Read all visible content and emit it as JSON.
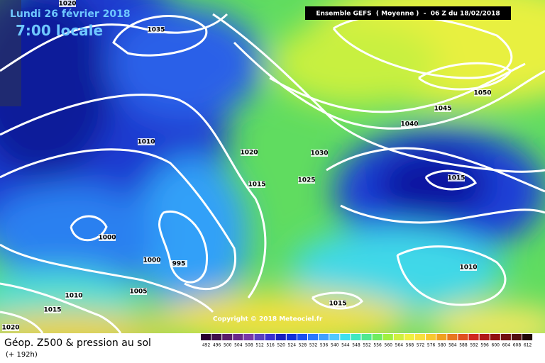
{
  "header": {
    "date": "Lundi 26 février 2018",
    "time": "7:00 locale",
    "model": "Ensemble GEFS  ( Moyenne )  -  06 Z du 18/02/2018"
  },
  "isobars": [
    "1020",
    "1035",
    "1010",
    "1000",
    "1000",
    "995",
    "1005",
    "1010",
    "1015",
    "1020",
    "1020",
    "1015",
    "1025",
    "1030",
    "1040",
    "1045",
    "1050",
    "1015",
    "1010",
    "1015"
  ],
  "copyright": "Copyright © 2018 Meteociel.fr",
  "footer": {
    "title": "Géop. Z500 & pression au sol",
    "lead": "(+ 192h)"
  },
  "legend": {
    "levels": [
      492,
      496,
      500,
      504,
      508,
      512,
      516,
      520,
      524,
      528,
      532,
      536,
      540,
      544,
      548,
      552,
      556,
      560,
      564,
      568,
      572,
      576,
      580,
      584,
      588,
      592,
      596,
      600,
      604,
      608,
      612
    ]
  }
}
